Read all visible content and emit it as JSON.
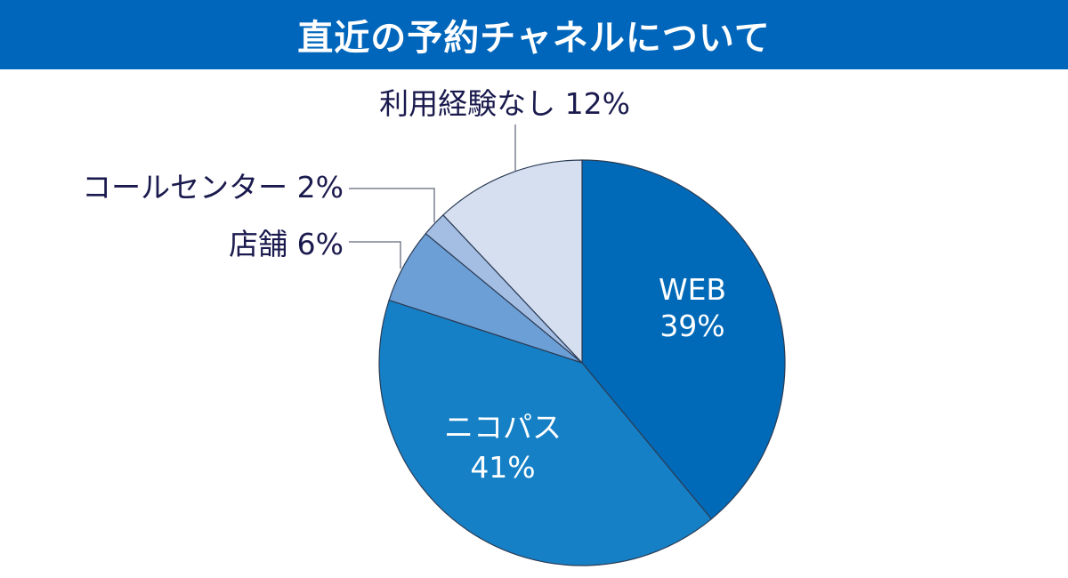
{
  "title": "直近の予約チャネルについて",
  "colors": {
    "title_bg": "#0066bb",
    "label_outside": "#1a1a4e",
    "label_inside": "#ffffff"
  },
  "chart_data": {
    "type": "pie",
    "title": "直近の予約チャネルについて",
    "start_angle_deg": 0,
    "direction": "clockwise",
    "slices": [
      {
        "label": "WEB",
        "value": 39,
        "value_text": "39%",
        "color": "#006ab8"
      },
      {
        "label": "ニコパス",
        "value": 41,
        "value_text": "41%",
        "color": "#1680c6"
      },
      {
        "label": "店舗",
        "value": 6,
        "value_text": "6%",
        "color": "#6c9fd6"
      },
      {
        "label": "コールセンター",
        "value": 2,
        "value_text": "2%",
        "color": "#a4bde2"
      },
      {
        "label": "利用経験なし",
        "value": 12,
        "value_text": "12%",
        "color": "#d5dff0"
      }
    ]
  }
}
